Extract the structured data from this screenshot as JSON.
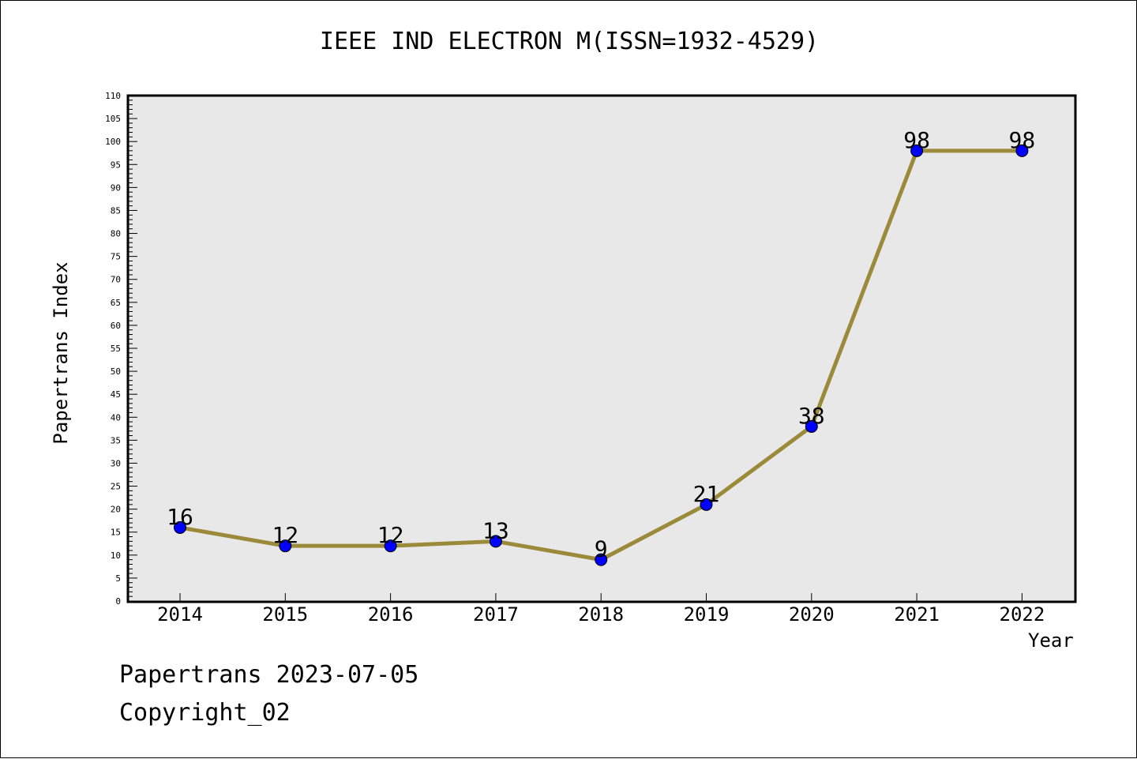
{
  "chart_data": {
    "type": "line",
    "title": "IEEE IND ELECTRON M(ISSN=1932-4529)",
    "xlabel": "Year",
    "ylabel": "Papertrans Index",
    "categories": [
      "2014",
      "2015",
      "2016",
      "2017",
      "2018",
      "2019",
      "2020",
      "2021",
      "2022"
    ],
    "series": [
      {
        "values": [
          16,
          12,
          12,
          13,
          9,
          21,
          38,
          98,
          98
        ]
      }
    ],
    "data_labels": [
      "16",
      "12",
      "12",
      "13",
      "9",
      "21",
      "38",
      "98",
      "98"
    ],
    "ylim": [
      0,
      110
    ],
    "y_major_step": 5,
    "y_minor_step": 1,
    "grid": false,
    "line_color": "#9a8a3a",
    "marker_color": "#0000ff",
    "plot_background": "#e8e8e8"
  },
  "footer": {
    "line1": "Papertrans 2023-07-05",
    "line2": "Copyright_02"
  }
}
